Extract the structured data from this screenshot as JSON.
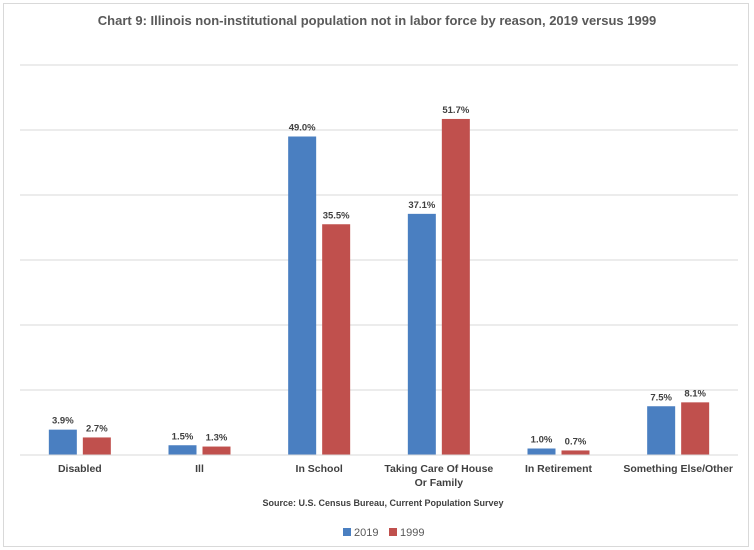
{
  "chart_data": {
    "type": "bar",
    "title": "Chart 9: Illinois non-institutional population not in labor force by reason, 2019 versus 1999",
    "categories": [
      [
        "Disabled"
      ],
      [
        "Ill"
      ],
      [
        "In School"
      ],
      [
        "Taking Care Of House",
        "Or Family"
      ],
      [
        "In Retirement"
      ],
      [
        "Something Else/Other"
      ]
    ],
    "series": [
      {
        "name": "2019",
        "color": "#4a7fc1",
        "values": [
          3.9,
          1.5,
          49.0,
          37.1,
          1.0,
          7.5
        ],
        "labels": [
          "3.9%",
          "1.5%",
          "49.0%",
          "37.1%",
          "1.0%",
          "7.5%"
        ]
      },
      {
        "name": "1999",
        "color": "#c0504d",
        "values": [
          2.7,
          1.3,
          35.5,
          51.7,
          0.7,
          8.1
        ],
        "labels": [
          "2.7%",
          "1.3%",
          "35.5%",
          "51.7%",
          "0.7%",
          "8.1%"
        ]
      }
    ],
    "ylim": [
      0,
      60
    ],
    "gridlines": true,
    "y_tick_labels_shown": false,
    "source": "Source: U.S. Census Bureau, Current Population Survey",
    "legend_position": "bottom"
  }
}
